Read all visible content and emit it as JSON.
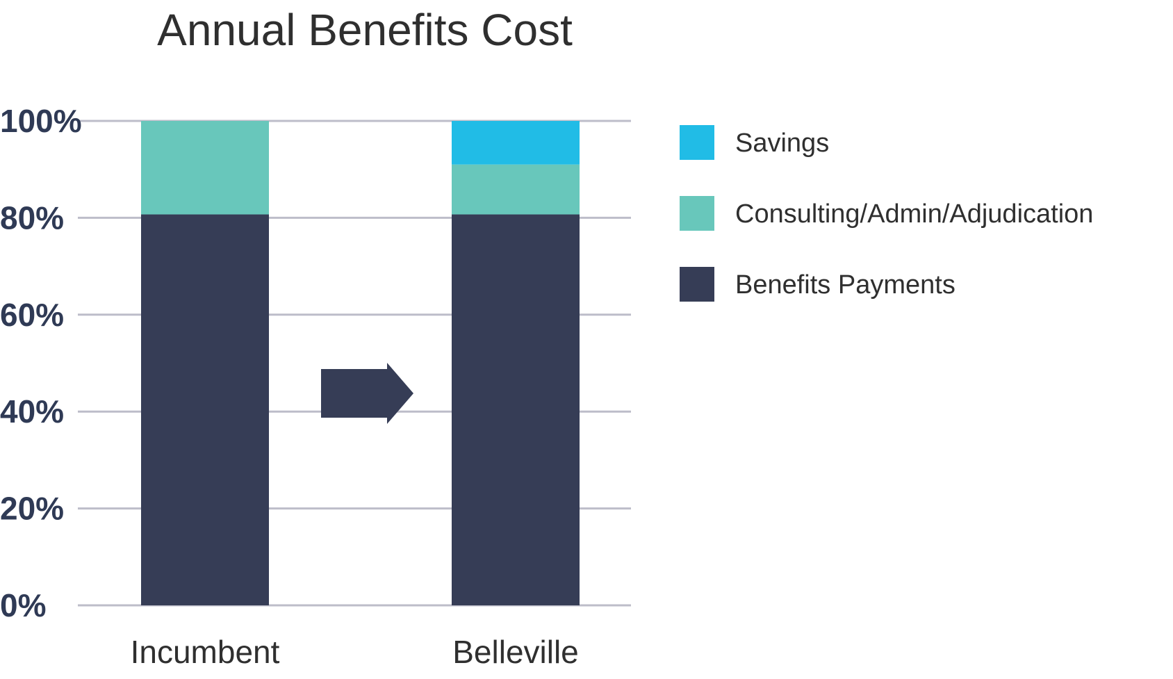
{
  "chart_data": {
    "type": "bar",
    "stacked": true,
    "title": "Annual Benefits Cost",
    "categories": [
      "Incumbent",
      "Belleville"
    ],
    "series": [
      {
        "name": "Benefits Payments",
        "values": [
          80.7,
          80.7
        ],
        "color": "#363d56"
      },
      {
        "name": "Consulting/Admin/Adjudication",
        "values": [
          19.3,
          10.3
        ],
        "color": "#68c7bb"
      },
      {
        "name": "Savings",
        "values": [
          0,
          9.0
        ],
        "color": "#21bce6"
      }
    ],
    "ylim": [
      0,
      100
    ],
    "yticks": [
      0,
      20,
      40,
      60,
      80,
      100
    ],
    "ytick_labels": [
      "0%",
      "20%",
      "40%",
      "60%",
      "80%",
      "100%"
    ],
    "grid": true,
    "gridline_color": "#bdbdc9",
    "legend_position": "right",
    "legend_order": [
      "Savings",
      "Consulting/Admin/Adjudication",
      "Benefits Payments"
    ],
    "annotations": [
      {
        "kind": "arrow-right",
        "color": "#363d56",
        "from": "Incumbent",
        "to": "Belleville"
      }
    ]
  }
}
